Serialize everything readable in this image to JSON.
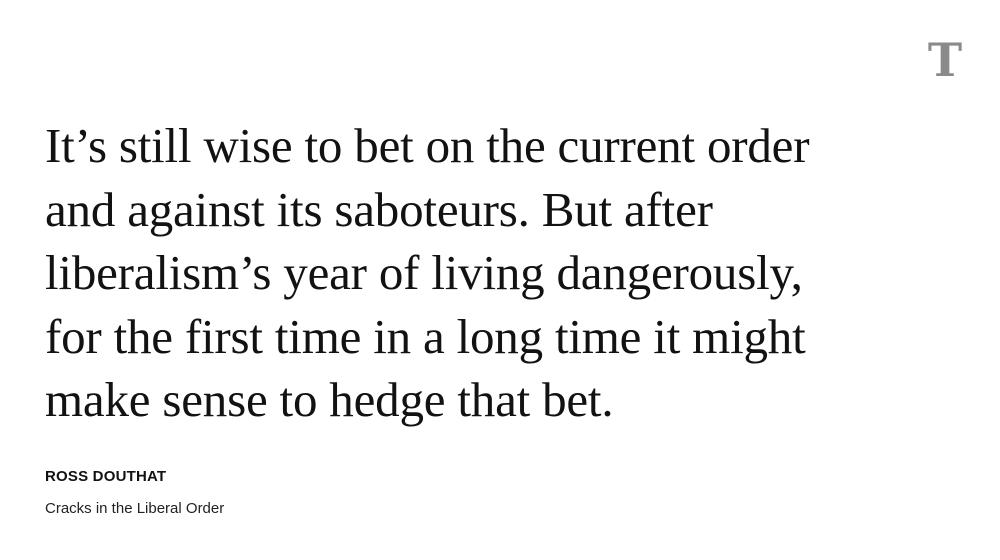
{
  "logo": {
    "icon": "nyt-t-logo-icon",
    "glyph": "T",
    "color": "#8a8a8a"
  },
  "quote": {
    "lines": [
      "It’s still wise to bet on the current order",
      "and against its saboteurs. But after",
      "liberalism’s year of living dangerously,",
      "for the first time in a long time it might",
      "make sense to hedge that bet."
    ]
  },
  "byline": {
    "author": "ROSS DOUTHAT",
    "article_title": "Cracks in the Liberal Order"
  }
}
